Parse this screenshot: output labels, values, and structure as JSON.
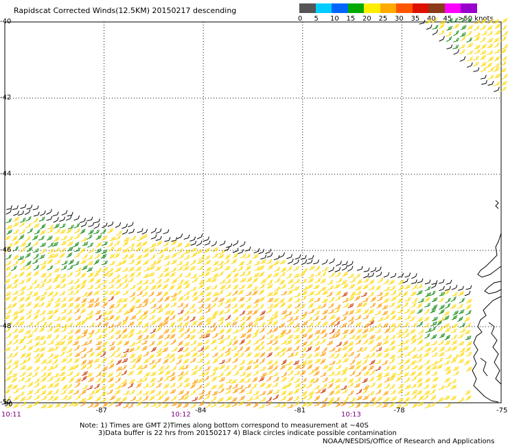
{
  "title": "Rapidscat Corrected Winds(12.5KM) 20150217 descending",
  "legend": {
    "unit_label": ">50 knots",
    "bins": [
      {
        "label": "0",
        "color": "#555555"
      },
      {
        "label": "5",
        "color": "#00ccff"
      },
      {
        "label": "10",
        "color": "#0066ff"
      },
      {
        "label": "15",
        "color": "#00aa00"
      },
      {
        "label": "20",
        "color": "#ffee00"
      },
      {
        "label": "25",
        "color": "#ffaa00"
      },
      {
        "label": "30",
        "color": "#ff5500"
      },
      {
        "label": "35",
        "color": "#dd1100"
      },
      {
        "label": "40",
        "color": "#8b3a1a"
      },
      {
        "label": "45",
        "color": "#ff00ff"
      },
      {
        "label": "",
        "color": "#9900cc"
      }
    ]
  },
  "lat_labels": [
    "-40",
    "-42",
    "-44",
    "-46",
    "-48",
    "-50"
  ],
  "lon_labels": [
    "-90",
    "-87",
    "-84",
    "-81",
    "-78",
    "-75"
  ],
  "time_labels": [
    "10:11",
    "10:12",
    "10:13"
  ],
  "notes": [
    "Note: 1) Times are GMT 2)Times along bottom correspond to measurement at ~40S",
    "3)Data buffer is 22 hrs from 20150217 4) Black circles indicate possible contamination"
  ],
  "credit": "NOAA/NESDIS/Office of Research and Applications"
}
